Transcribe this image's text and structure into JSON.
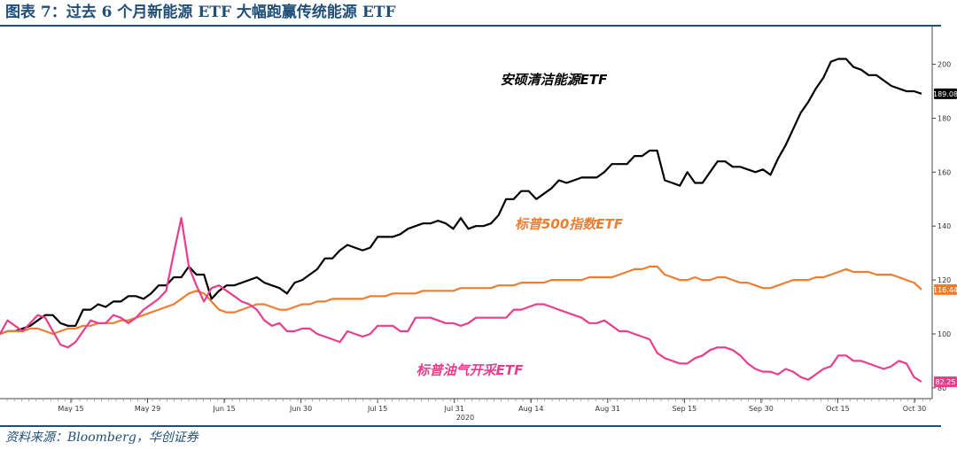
{
  "title": "图表 7：过去 6 个月新能源 ETF 大幅跑赢传统能源 ETF",
  "source": "资料来源：Bloomberg，华创证券",
  "chart_data": {
    "type": "line",
    "year_label": "2020",
    "x_tick_labels": [
      "May 15",
      "May 29",
      "Jun 15",
      "Jun 30",
      "Jul 15",
      "Jul 31",
      "Aug 14",
      "Aug 31",
      "Sep 15",
      "Sep 30",
      "Oct 15",
      "Oct 30"
    ],
    "y_tick_labels": [
      "80",
      "100",
      "120",
      "140",
      "160",
      "180",
      "200"
    ],
    "ylim": [
      76,
      214
    ],
    "y_axis_side": "right",
    "grid": false,
    "n_points": 123,
    "series": [
      {
        "name": "安硕清洁能源ETF",
        "color": "#000000",
        "end_value_label": "189.08",
        "values": [
          100,
          101,
          101,
          102,
          103,
          105,
          107,
          107,
          104,
          103,
          103,
          109,
          109,
          111,
          110,
          112,
          112,
          114,
          114,
          113,
          115,
          118,
          118,
          121,
          121,
          125,
          122,
          122,
          113,
          116,
          118,
          118,
          119,
          120,
          121,
          119,
          118,
          117,
          115,
          119,
          120,
          122,
          124,
          128,
          128,
          131,
          133,
          132,
          131,
          132,
          136,
          136,
          136,
          137,
          139,
          140,
          141,
          141,
          142,
          141,
          139,
          143,
          139,
          140,
          140,
          141,
          144,
          150,
          150,
          153,
          153,
          150,
          152,
          154,
          157,
          156,
          157,
          158,
          158,
          158,
          160,
          163,
          163,
          163,
          166,
          166,
          168,
          168,
          157,
          156,
          155,
          160,
          156,
          156,
          160,
          164,
          164,
          162,
          162,
          161,
          160,
          161,
          159,
          165,
          170,
          176,
          182,
          186,
          191,
          195,
          201,
          202,
          202,
          199,
          198,
          196,
          196,
          194,
          192,
          191,
          190,
          190,
          189.08
        ]
      },
      {
        "name": "标普500指数ETF",
        "color": "#ed7d31",
        "end_value_label": "116.44",
        "values": [
          100,
          101,
          101,
          101,
          102,
          102,
          101,
          100,
          101,
          102,
          102,
          103,
          103,
          104,
          104,
          104,
          105,
          105,
          106,
          107,
          108,
          109,
          110,
          111,
          113,
          115,
          116,
          115,
          112,
          109,
          108,
          108,
          109,
          110,
          111,
          111,
          110,
          109,
          109,
          110,
          111,
          111,
          112,
          112,
          113,
          113,
          113,
          113,
          113,
          114,
          114,
          114,
          115,
          115,
          115,
          115,
          116,
          116,
          116,
          116,
          116,
          117,
          117,
          117,
          117,
          117,
          118,
          118,
          118,
          119,
          119,
          119,
          119,
          120,
          120,
          120,
          120,
          120,
          121,
          121,
          121,
          121,
          122,
          123,
          124,
          124,
          125,
          125,
          122,
          121,
          120,
          120,
          121,
          120,
          120,
          121,
          121,
          120,
          119,
          119,
          118,
          117,
          117,
          118,
          119,
          120,
          120,
          120,
          121,
          121,
          122,
          123,
          124,
          123,
          123,
          123,
          122,
          122,
          122,
          121,
          120,
          119,
          116.44
        ]
      },
      {
        "name": "标普油气开采ETF",
        "color": "#e83e8c",
        "end_value_label": "82.25",
        "values": [
          100,
          105,
          103,
          101,
          104,
          107,
          106,
          101,
          96,
          95,
          97,
          101,
          105,
          104,
          104,
          107,
          106,
          104,
          106,
          109,
          111,
          113,
          116,
          130,
          143,
          125,
          118,
          112,
          117,
          118,
          116,
          114,
          112,
          111,
          109,
          105,
          103,
          104,
          101,
          101,
          102,
          102,
          100,
          99,
          98,
          97,
          101,
          100,
          99,
          100,
          103,
          103,
          103,
          101,
          101,
          106,
          106,
          106,
          105,
          104,
          104,
          103,
          104,
          106,
          106,
          106,
          106,
          106,
          109,
          109,
          110,
          111,
          111,
          110,
          109,
          108,
          107,
          106,
          104,
          104,
          105,
          103,
          101,
          101,
          100,
          99,
          98,
          93,
          91,
          90,
          89,
          89,
          91,
          92,
          94,
          95,
          95,
          94,
          92,
          89,
          87,
          86,
          86,
          85,
          87,
          86,
          84,
          83,
          85,
          87,
          88,
          92,
          92,
          90,
          90,
          89,
          88,
          87,
          88,
          90,
          89,
          84,
          82.25
        ]
      }
    ]
  }
}
